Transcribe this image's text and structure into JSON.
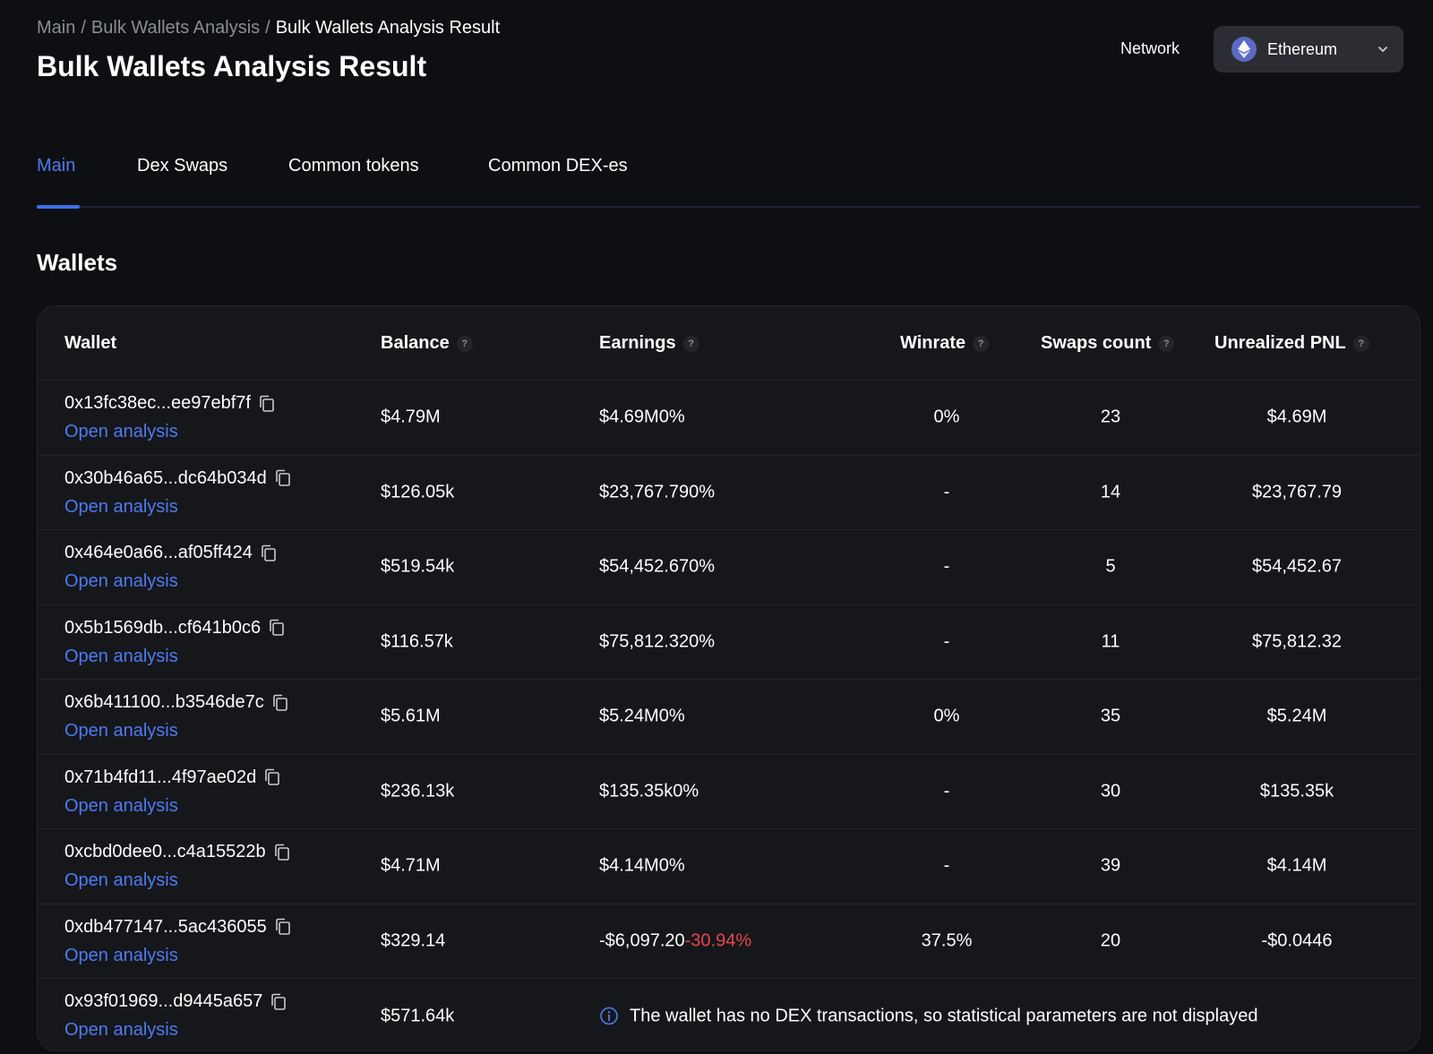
{
  "breadcrumb": {
    "items": [
      "Main",
      "Bulk Wallets Analysis"
    ],
    "separator": "/",
    "current": "Bulk Wallets Analysis Result"
  },
  "page_title": "Bulk Wallets Analysis Result",
  "network": {
    "label": "Network",
    "selected": "Ethereum",
    "icon": "ethereum-icon"
  },
  "tabs": [
    {
      "label": "Main",
      "active": true
    },
    {
      "label": "Dex Swaps",
      "active": false
    },
    {
      "label": "Common tokens",
      "active": false
    },
    {
      "label": "Common DEX-es",
      "active": false
    }
  ],
  "section_title": "Wallets",
  "table": {
    "headers": {
      "wallet": "Wallet",
      "balance": "Balance",
      "earnings": "Earnings",
      "winrate": "Winrate",
      "swaps": "Swaps count",
      "pnl": "Unrealized PNL",
      "help": "?"
    },
    "open_label": "Open analysis",
    "rows": [
      {
        "wallet": "0x13fc38ec...ee97ebf7f",
        "balance": "$4.79M",
        "earnings": "$4.69M",
        "earnings_pct": "0%",
        "winrate": "0%",
        "swaps": "23",
        "pnl": "$4.69M"
      },
      {
        "wallet": "0x30b46a65...dc64b034d",
        "balance": "$126.05k",
        "earnings": "$23,767.79",
        "earnings_pct": "0%",
        "winrate": "-",
        "swaps": "14",
        "pnl": "$23,767.79"
      },
      {
        "wallet": "0x464e0a66...af05ff424",
        "balance": "$519.54k",
        "earnings": "$54,452.67",
        "earnings_pct": "0%",
        "winrate": "-",
        "swaps": "5",
        "pnl": "$54,452.67"
      },
      {
        "wallet": "0x5b1569db...cf641b0c6",
        "balance": "$116.57k",
        "earnings": "$75,812.32",
        "earnings_pct": "0%",
        "winrate": "-",
        "swaps": "11",
        "pnl": "$75,812.32"
      },
      {
        "wallet": "0x6b411100...b3546de7c",
        "balance": "$5.61M",
        "earnings": "$5.24M",
        "earnings_pct": "0%",
        "winrate": "0%",
        "swaps": "35",
        "pnl": "$5.24M"
      },
      {
        "wallet": "0x71b4fd11...4f97ae02d",
        "balance": "$236.13k",
        "earnings": "$135.35k",
        "earnings_pct": "0%",
        "winrate": "-",
        "swaps": "30",
        "pnl": "$135.35k"
      },
      {
        "wallet": "0xcbd0dee0...c4a15522b",
        "balance": "$4.71M",
        "earnings": "$4.14M",
        "earnings_pct": "0%",
        "winrate": "-",
        "swaps": "39",
        "pnl": "$4.14M"
      },
      {
        "wallet": "0xdb477147...5ac436055",
        "balance": "$329.14",
        "earnings": "-$6,097.20",
        "earnings_pct": "-30.94%",
        "negative": true,
        "winrate": "37.5%",
        "swaps": "20",
        "pnl": "-$0.0446"
      },
      {
        "wallet": "0x93f01969...d9445a657",
        "balance": "$571.64k",
        "no_dex_message": "The wallet has no DEX transactions, so statistical parameters are not displayed"
      }
    ]
  },
  "colors": {
    "background": "#0e0f12",
    "card": "#16171b",
    "accent": "#4d7bf3",
    "negative": "#e5484d"
  }
}
